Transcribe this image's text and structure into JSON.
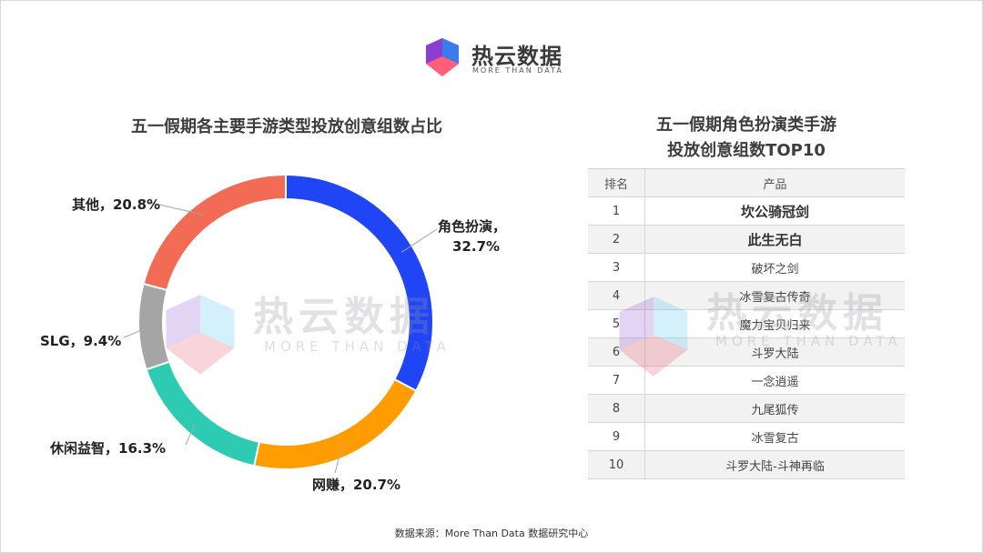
{
  "brand": {
    "name": "热云数据",
    "tagline": "MORE THAN DATA"
  },
  "chart_data": [
    {
      "type": "pie",
      "title": "五一假期各主要手游类型投放创意组数占比",
      "categories": [
        "角色扮演",
        "网赚",
        "休闲益智",
        "SLG",
        "其他"
      ],
      "values": [
        32.7,
        20.7,
        16.3,
        9.4,
        20.8
      ],
      "labels": [
        "角色扮演，",
        "网赚，20.7%",
        "休闲益智，16.3%",
        "SLG，9.4%",
        "其他，20.8%"
      ],
      "label_values": [
        "32.7%"
      ],
      "colors": [
        "#1f45f5",
        "#ff9c00",
        "#2ecbb3",
        "#a5a5a5",
        "#f26b55"
      ],
      "donut": true,
      "legend": "none"
    },
    {
      "type": "table",
      "title_lines": [
        "五一假期角色扮演类手游",
        "投放创意组数TOP10"
      ],
      "columns": [
        "排名",
        "产品"
      ],
      "rows": [
        {
          "rank": "1",
          "name": "坎公骑冠剑"
        },
        {
          "rank": "2",
          "name": "此生无白"
        },
        {
          "rank": "3",
          "name": "破坏之剑"
        },
        {
          "rank": "4",
          "name": "冰雪复古传奇"
        },
        {
          "rank": "5",
          "name": "魔力宝贝归来"
        },
        {
          "rank": "6",
          "name": "斗罗大陆"
        },
        {
          "rank": "7",
          "name": "一念逍遥"
        },
        {
          "rank": "8",
          "name": "九尾狐传"
        },
        {
          "rank": "9",
          "name": "冰雪复古"
        },
        {
          "rank": "10",
          "name": "斗罗大陆-斗神再临"
        }
      ]
    }
  ],
  "source": "数据来源：More  Than  Data 数据研究中心"
}
